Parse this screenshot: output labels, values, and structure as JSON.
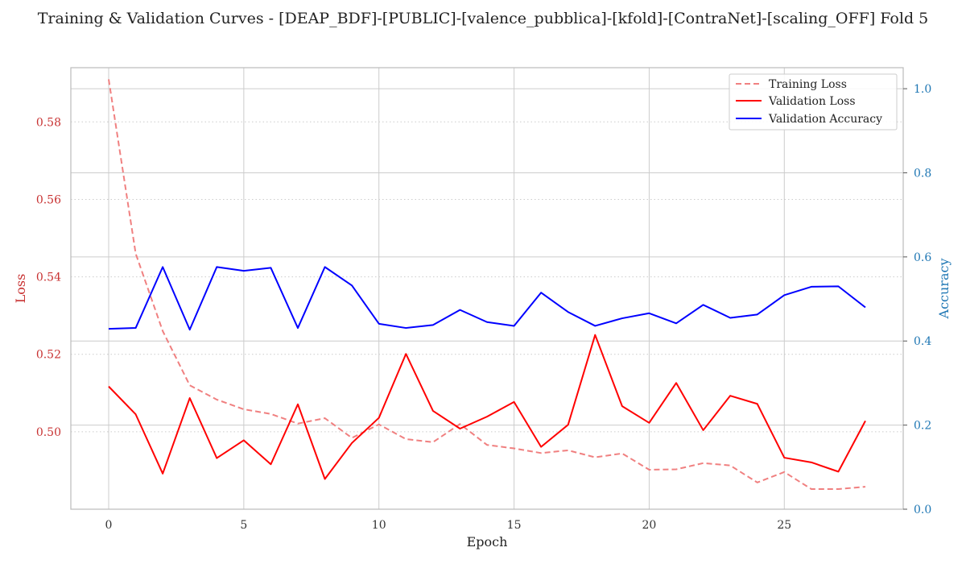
{
  "chart_data": {
    "type": "line",
    "title": "Training & Validation Curves - [DEAP_BDF]-[PUBLIC]-[valence_pubblica]-[kfold]-[ContraNet]-[scaling_OFF] Fold 5",
    "xlabel": "Epoch",
    "ylabel_left": "Loss",
    "ylabel_right": "Accuracy",
    "x": [
      0,
      1,
      2,
      3,
      4,
      5,
      6,
      7,
      8,
      9,
      10,
      11,
      12,
      13,
      14,
      15,
      16,
      17,
      18,
      19,
      20,
      21,
      22,
      23,
      24,
      25,
      26,
      27,
      28
    ],
    "xticks": [
      0,
      5,
      10,
      15,
      20,
      25
    ],
    "xlim": [
      -1.4,
      29.4
    ],
    "ylim_left": [
      0.48,
      0.594
    ],
    "yticks_left": [
      0.5,
      0.52,
      0.54,
      0.56,
      0.58
    ],
    "yticks_left_labels": [
      "0.50",
      "0.52",
      "0.54",
      "0.56",
      "0.58"
    ],
    "ylim_right": [
      0.0,
      1.05
    ],
    "yticks_right": [
      0.0,
      0.2,
      0.4,
      0.6,
      0.8,
      1.0
    ],
    "yticks_right_labels": [
      "0.0",
      "0.2",
      "0.4",
      "0.6",
      "0.8",
      "1.0"
    ],
    "grid": true,
    "legend_position": "top-right",
    "colors": {
      "training_loss": "#f08080",
      "validation_loss": "#ff0000",
      "validation_accuracy": "#0000ff",
      "left_axis": "#c83232",
      "right_axis": "#1f77b4",
      "grid": "#cccccc"
    },
    "series": [
      {
        "name": "Training Loss",
        "axis": "left",
        "style": "dashed",
        "values": [
          0.591,
          0.546,
          0.526,
          0.512,
          0.5083,
          0.5058,
          0.5046,
          0.5021,
          0.5035,
          0.4984,
          0.5019,
          0.4981,
          0.4973,
          0.502,
          0.4966,
          0.4957,
          0.4945,
          0.4952,
          0.4934,
          0.4944,
          0.4902,
          0.4903,
          0.4919,
          0.4913,
          0.4869,
          0.4896,
          0.4852,
          0.4852,
          0.4858
        ]
      },
      {
        "name": "Validation Loss",
        "axis": "left",
        "style": "solid",
        "values": [
          0.5117,
          0.5045,
          0.4892,
          0.5087,
          0.4932,
          0.4978,
          0.4916,
          0.5071,
          0.4878,
          0.4971,
          0.5036,
          0.5201,
          0.5054,
          0.5008,
          0.5039,
          0.5077,
          0.4961,
          0.5018,
          0.525,
          0.5066,
          0.5023,
          0.5126,
          0.5004,
          0.5093,
          0.5072,
          0.4933,
          0.4921,
          0.4897,
          0.5028
        ]
      },
      {
        "name": "Validation Accuracy",
        "axis": "right",
        "style": "solid",
        "values": [
          0.429,
          0.431,
          0.576,
          0.427,
          0.576,
          0.567,
          0.574,
          0.431,
          0.576,
          0.532,
          0.441,
          0.431,
          0.438,
          0.474,
          0.445,
          0.436,
          0.515,
          0.469,
          0.436,
          0.454,
          0.466,
          0.442,
          0.486,
          0.455,
          0.463,
          0.509,
          0.529,
          0.53,
          0.48
        ]
      }
    ]
  }
}
